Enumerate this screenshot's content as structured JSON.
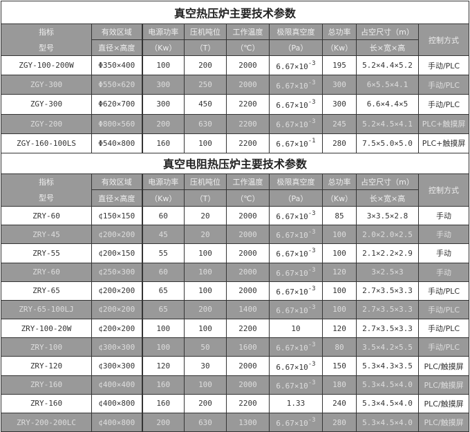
{
  "tables": [
    {
      "title": "真空热压炉主要技术参数",
      "header": {
        "row1": [
          "指标",
          "有效区域",
          "电源功率",
          "压机吨位",
          "工作温度",
          "极限真空度",
          "总功率",
          "占空尺寸（m）",
          "控制方式"
        ],
        "row2": [
          "型号",
          "直径×高度",
          "（Kw）",
          "（T）",
          "（℃）",
          "（Pa）",
          "（Kw）",
          "长×宽×高"
        ]
      },
      "rows": [
        {
          "model": "ZGY-100-200W",
          "zone": "Φ350×400",
          "power": "100",
          "tonnage": "200",
          "temp": "2000",
          "vac_base": "6.67×10",
          "vac_exp": "-3",
          "total": "195",
          "size": "5.2×4.4×5.2",
          "control": "手动/PLC"
        },
        {
          "model": "ZGY-300",
          "zone": "Φ550×620",
          "power": "300",
          "tonnage": "250",
          "temp": "2000",
          "vac_base": "6.67×10",
          "vac_exp": "-3",
          "total": "300",
          "size": "6×5.5×4.1",
          "control": "手动/PLC"
        },
        {
          "model": "ZGY-300",
          "zone": "Φ620×700",
          "power": "300",
          "tonnage": "450",
          "temp": "2200",
          "vac_base": "6.67×10",
          "vac_exp": "-3",
          "total": "300",
          "size": "6.6×4.4×5",
          "control": "手动/PLC"
        },
        {
          "model": "ZGY-200",
          "zone": "Φ800×560",
          "power": "200",
          "tonnage": "630",
          "temp": "2200",
          "vac_base": "6.67×10",
          "vac_exp": "-3",
          "total": "245",
          "size": "5.2×4.5×4.1",
          "control": "PLC+触摸屏"
        },
        {
          "model": "ZGY-160-100LS",
          "zone": "Φ540×800",
          "power": "160",
          "tonnage": "100",
          "temp": "2200",
          "vac_base": "6.67×10",
          "vac_exp": "-1",
          "total": "280",
          "size": "7.5×5.0×5.0",
          "control": "PLC+触摸屏"
        }
      ]
    },
    {
      "title": "真空电阻热压炉主要技术参数",
      "header": {
        "row1": [
          "指标",
          "有效区域",
          "电源功率",
          "压机吨位",
          "工作温度",
          "极限真空度",
          "总功率",
          "占空尺寸（m）",
          "控制方式"
        ],
        "row2": [
          "型号",
          "直径×高度",
          "（Kw）",
          "（T）",
          "（℃）",
          "（Pa）",
          "（Kw）",
          "长×宽×高"
        ]
      },
      "rows": [
        {
          "model": "ZRY-60",
          "zone": "¢150×150",
          "power": "60",
          "tonnage": "20",
          "temp": "2000",
          "vac_base": "6.67×10",
          "vac_exp": "-3",
          "total": "85",
          "size": "3×3.5×2.8",
          "control": "手动"
        },
        {
          "model": "ZRY-45",
          "zone": "¢200×200",
          "power": "45",
          "tonnage": "20",
          "temp": "2000",
          "vac_base": "6.67×10",
          "vac_exp": "-3",
          "total": "100",
          "size": "2.0×2.0×2.5",
          "control": "手动"
        },
        {
          "model": "ZRY-55",
          "zone": "¢200×150",
          "power": "55",
          "tonnage": "100",
          "temp": "2000",
          "vac_base": "6.67×10",
          "vac_exp": "-3",
          "total": "100",
          "size": "2.1×2.2×2.9",
          "control": "手动"
        },
        {
          "model": "ZRY-60",
          "zone": "¢250×300",
          "power": "60",
          "tonnage": "100",
          "temp": "2000",
          "vac_base": "6.67×10",
          "vac_exp": "-3",
          "total": "120",
          "size": "3×2.5×3",
          "control": "手动"
        },
        {
          "model": "ZRY-65",
          "zone": "¢200×200",
          "power": "65",
          "tonnage": "100",
          "temp": "2000",
          "vac_base": "6.67×10",
          "vac_exp": "-3",
          "total": "100",
          "size": "2.7×3.5×3.3",
          "control": "手动/PLC"
        },
        {
          "model": "ZRY-65-100LJ",
          "zone": "¢200×200",
          "power": "65",
          "tonnage": "200",
          "temp": "1400",
          "vac_base": "6.67×10",
          "vac_exp": "-3",
          "total": "100",
          "size": "2.7×3.5×3.3",
          "control": "手动/PLC"
        },
        {
          "model": "ZRY-100-20W",
          "zone": "¢200×200",
          "power": "100",
          "tonnage": "100",
          "temp": "2200",
          "vac_base": "10",
          "vac_exp": "",
          "total": "120",
          "size": "2.7×3.5×3.3",
          "control": "手动/PLC"
        },
        {
          "model": "ZRY-100",
          "zone": "¢300×300",
          "power": "100",
          "tonnage": "50",
          "temp": "1600",
          "vac_base": "6.67×10",
          "vac_exp": "-3",
          "total": "80",
          "size": "3.5×4.2×5.5",
          "control": "手动/PLC"
        },
        {
          "model": "ZRY-120",
          "zone": "¢300×300",
          "power": "120",
          "tonnage": "30",
          "temp": "2000",
          "vac_base": "6.67×10",
          "vac_exp": "-3",
          "total": "150",
          "size": "5.3×4.3×3.5",
          "control": "PLC/触摸屏"
        },
        {
          "model": "ZRY-160",
          "zone": "¢400×400",
          "power": "160",
          "tonnage": "100",
          "temp": "2000",
          "vac_base": "6.67×10",
          "vac_exp": "-3",
          "total": "180",
          "size": "5.3×4.5×4.0",
          "control": "PLC/触摸屏"
        },
        {
          "model": "ZRY-160",
          "zone": "¢400×800",
          "power": "160",
          "tonnage": "200",
          "temp": "2200",
          "vac_base": "1.33",
          "vac_exp": "",
          "total": "240",
          "size": "5.3×4.5×4.0",
          "control": "PLC/触摸屏"
        },
        {
          "model": "ZRY-200-200LC",
          "zone": "¢400×800",
          "power": "200",
          "tonnage": "630",
          "temp": "1300",
          "vac_base": "6.67×10",
          "vac_exp": "-3",
          "total": "280",
          "size": "5.3×4.5×4.0",
          "control": "PLC/触摸屏"
        }
      ]
    }
  ]
}
